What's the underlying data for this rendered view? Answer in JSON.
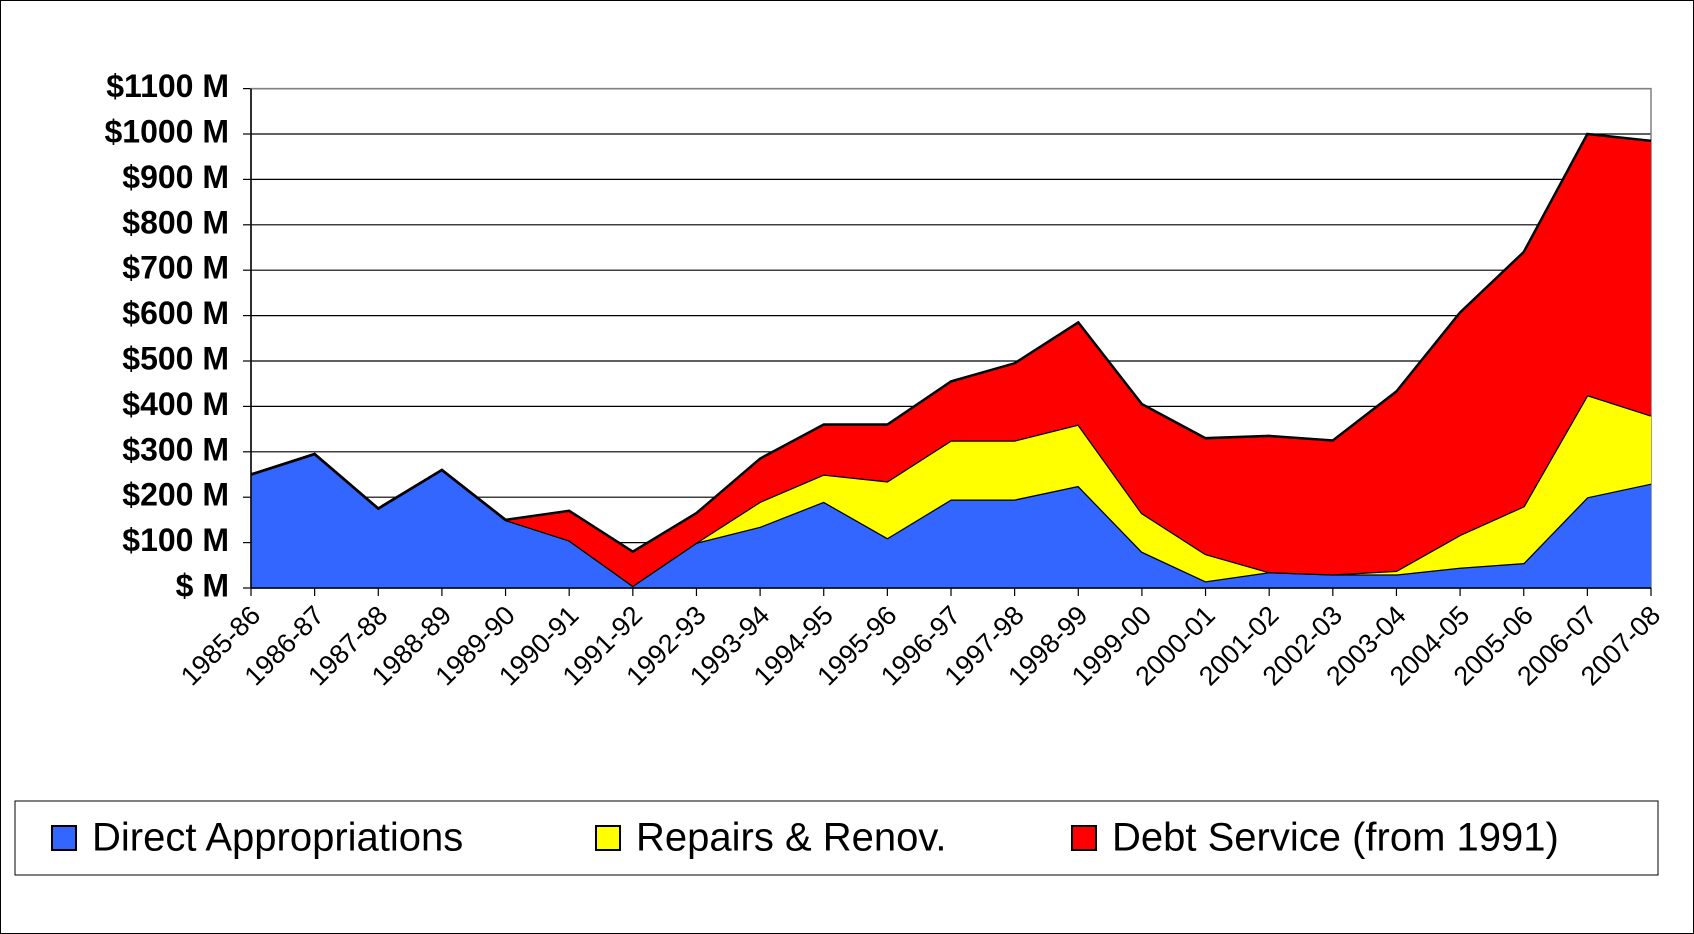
{
  "chart_data": {
    "type": "stacked_area",
    "categories": [
      "1985-86",
      "1986-87",
      "1987-88",
      "1988-89",
      "1989-90",
      "1990-91",
      "1991-92",
      "1992-93",
      "1993-94",
      "1994-95",
      "1995-96",
      "1996-97",
      "1997-98",
      "1998-99",
      "1999-00",
      "2000-01",
      "2001-02",
      "2002-03",
      "2003-04",
      "2004-05",
      "2005-06",
      "2006-07",
      "2007-08"
    ],
    "series": [
      {
        "name": "Direct Appropriations",
        "color": "#3366ff",
        "values": [
          250,
          295,
          175,
          260,
          150,
          105,
          5,
          100,
          135,
          190,
          110,
          195,
          195,
          225,
          80,
          15,
          35,
          30,
          30,
          45,
          55,
          200,
          230
        ]
      },
      {
        "name": "Repairs & Renov.",
        "color": "#ffff00",
        "values": [
          0,
          0,
          0,
          0,
          0,
          0,
          0,
          0,
          55,
          60,
          125,
          130,
          130,
          135,
          85,
          60,
          0,
          0,
          8,
          72,
          125,
          225,
          150
        ]
      },
      {
        "name": "Debt Service (from 1991)",
        "color": "#ff0000",
        "values": [
          0,
          0,
          0,
          0,
          0,
          65,
          75,
          65,
          95,
          110,
          125,
          130,
          170,
          225,
          240,
          255,
          300,
          295,
          395,
          490,
          560,
          575,
          605
        ]
      }
    ],
    "ylim": [
      0,
      1100
    ],
    "yticks": [
      {
        "value": 0,
        "label": "$ M"
      },
      {
        "value": 100,
        "label": "$100 M"
      },
      {
        "value": 200,
        "label": "$200 M"
      },
      {
        "value": 300,
        "label": "$300 M"
      },
      {
        "value": 400,
        "label": "$400 M"
      },
      {
        "value": 500,
        "label": "$500 M"
      },
      {
        "value": 600,
        "label": "$600 M"
      },
      {
        "value": 700,
        "label": "$700 M"
      },
      {
        "value": 800,
        "label": "$800 M"
      },
      {
        "value": 900,
        "label": "$900 M"
      },
      {
        "value": 1000,
        "label": "$1000 M"
      },
      {
        "value": 1100,
        "label": "$1100 M"
      }
    ],
    "grid": true,
    "legend": "bottom"
  }
}
